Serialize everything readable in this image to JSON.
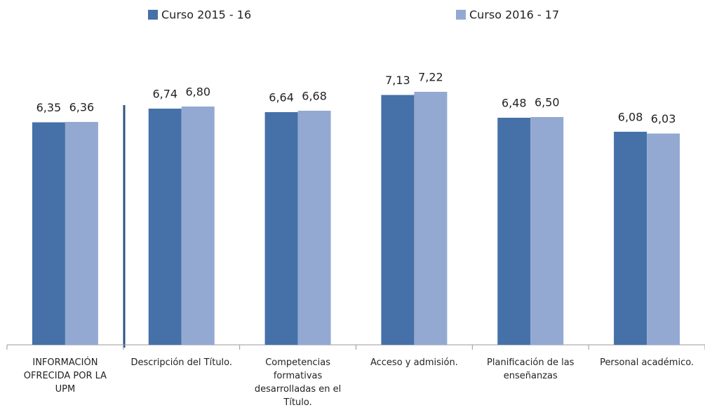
{
  "chart_data": {
    "type": "bar",
    "categories": [
      "INFORMACIÓN OFRECIDA POR LA UPM",
      "Descripción del Título.",
      "Competencias formativas desarrolladas en el Título.",
      "Acceso y admisión.",
      "Planificación de las enseñanzas",
      "Personal académico."
    ],
    "series": [
      {
        "name": "Curso 2015 - 16",
        "color": "#4571a8",
        "values": [
          6.35,
          6.74,
          6.64,
          7.13,
          6.48,
          6.08
        ],
        "value_labels": [
          "6,35",
          "6,74",
          "6,64",
          "7,13",
          "6,48",
          "6,08"
        ]
      },
      {
        "name": "Curso 2016 - 17",
        "color": "#93a9d2",
        "values": [
          6.36,
          6.8,
          6.68,
          7.22,
          6.5,
          6.03
        ],
        "value_labels": [
          "6,36",
          "6,80",
          "6,68",
          "7,22",
          "6,50",
          "6,03"
        ]
      }
    ],
    "ylim": [
      0,
      8
    ]
  }
}
